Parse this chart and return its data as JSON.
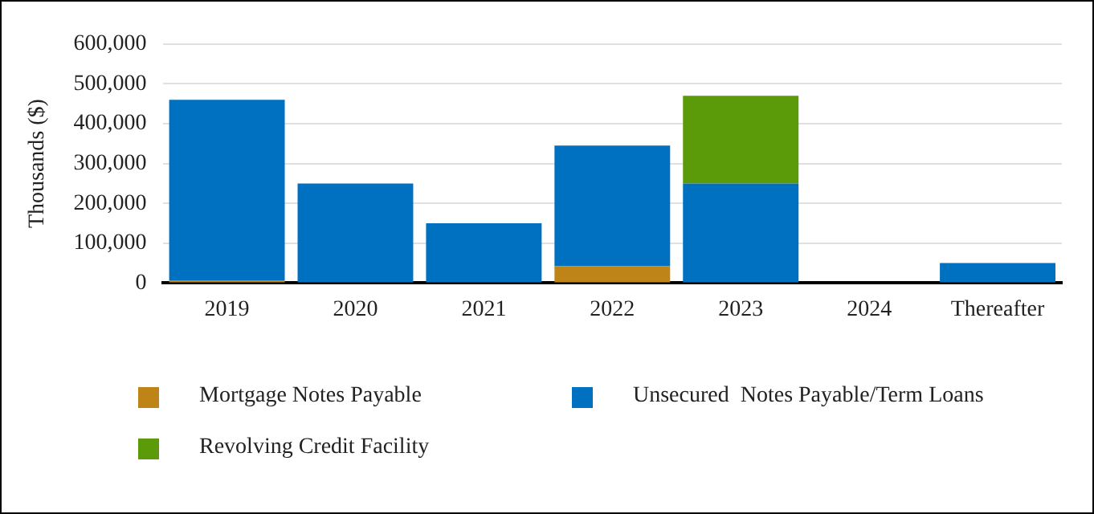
{
  "chart_data": {
    "type": "bar",
    "ylabel": "Thousands ($)",
    "stacked": true,
    "grid": "y",
    "legend": "bottom",
    "categories": [
      "2019",
      "2020",
      "2021",
      "2022",
      "2023",
      "2024",
      "Thereafter"
    ],
    "series": [
      {
        "name": "Mortgage Notes Payable",
        "color": "#bf8418",
        "values": [
          7000,
          0,
          0,
          42000,
          0,
          0,
          0
        ]
      },
      {
        "name": "Unsecured  Notes Payable/Term Loans",
        "color": "#0070c0",
        "values": [
          453000,
          250000,
          150000,
          303000,
          250000,
          0,
          50000
        ]
      },
      {
        "name": "Revolving Credit Facility",
        "color": "#5b9a08",
        "values": [
          0,
          0,
          0,
          0,
          220000,
          0,
          0
        ]
      }
    ],
    "ylim": [
      0,
      600000
    ],
    "yticks": [
      0,
      {
        "value": 100000,
        "label": "100,000"
      },
      {
        "value": 200000,
        "label": "200,000"
      },
      {
        "value": 300000,
        "label": "300,000"
      },
      {
        "value": 400000,
        "label": "400,000"
      },
      {
        "value": 500000,
        "label": "500,000"
      },
      {
        "value": 600000,
        "label": "600,000"
      }
    ]
  }
}
